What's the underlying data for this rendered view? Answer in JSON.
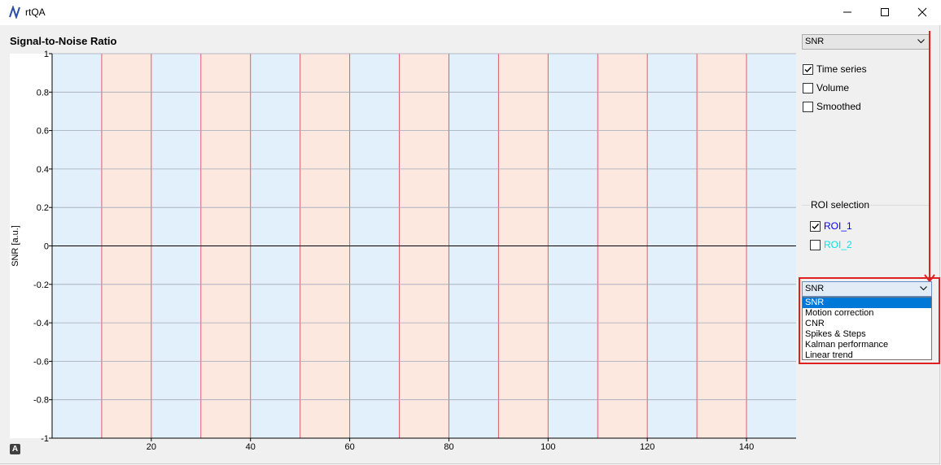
{
  "window": {
    "title": "rtQA",
    "icon": "rtqa-logo-icon",
    "controls": [
      "minimize-icon",
      "maximize-icon",
      "close-icon"
    ]
  },
  "plot": {
    "title": "Signal-to-Noise Ratio"
  },
  "chart_data": {
    "type": "line",
    "ylabel": "SNR [a.u.]",
    "xlabel": "",
    "ylim": [
      -1,
      1
    ],
    "xlim": [
      0,
      150
    ],
    "y_ticks": [
      "1",
      "0.8",
      "0.6",
      "0.4",
      "0.2",
      "0",
      "-0.2",
      "-0.4",
      "-0.6",
      "-0.8",
      "-1"
    ],
    "x_ticks": [
      "20",
      "40",
      "60",
      "80",
      "100",
      "120",
      "140"
    ],
    "x_tick_values": [
      20,
      40,
      60,
      80,
      100,
      120,
      140
    ],
    "grid": true,
    "series": [],
    "background_blocks": [
      {
        "start": 0,
        "end": 10,
        "condition": "baseline"
      },
      {
        "start": 10,
        "end": 20,
        "condition": "task"
      },
      {
        "start": 20,
        "end": 30,
        "condition": "baseline"
      },
      {
        "start": 30,
        "end": 40,
        "condition": "task"
      },
      {
        "start": 40,
        "end": 50,
        "condition": "baseline"
      },
      {
        "start": 50,
        "end": 60,
        "condition": "task"
      },
      {
        "start": 60,
        "end": 70,
        "condition": "baseline"
      },
      {
        "start": 70,
        "end": 80,
        "condition": "task"
      },
      {
        "start": 80,
        "end": 90,
        "condition": "baseline"
      },
      {
        "start": 90,
        "end": 100,
        "condition": "task"
      },
      {
        "start": 100,
        "end": 110,
        "condition": "baseline"
      },
      {
        "start": 110,
        "end": 120,
        "condition": "task"
      },
      {
        "start": 120,
        "end": 130,
        "condition": "baseline"
      },
      {
        "start": 130,
        "end": 140,
        "condition": "task"
      },
      {
        "start": 140,
        "end": 150,
        "condition": "baseline"
      }
    ],
    "colors": {
      "baseline": "#e2f0fb",
      "task": "#fde8e0",
      "task_edge": "#e35a6a",
      "grid": "#a0a8b8",
      "zero_line": "#000000"
    }
  },
  "controls": {
    "top_select": {
      "value": "SNR"
    },
    "checkboxes": [
      {
        "label": "Time series",
        "checked": true
      },
      {
        "label": "Volume",
        "checked": false
      },
      {
        "label": "Smoothed",
        "checked": false
      }
    ],
    "roi_group": {
      "title": "ROI selection",
      "items": [
        {
          "label": "ROI_1",
          "checked": true,
          "color": "#0000ff"
        },
        {
          "label": "ROI_2",
          "checked": false,
          "color": "#00e5e5"
        }
      ]
    },
    "open_select": {
      "value": "SNR",
      "options": [
        "SNR",
        "Motion correction",
        "CNR",
        "Spikes & Steps",
        "Kalman performance",
        "Linear trend"
      ],
      "selected_index": 0
    }
  },
  "annotation": {
    "color": "#e02020"
  },
  "misc": {
    "auto_button": "A"
  }
}
